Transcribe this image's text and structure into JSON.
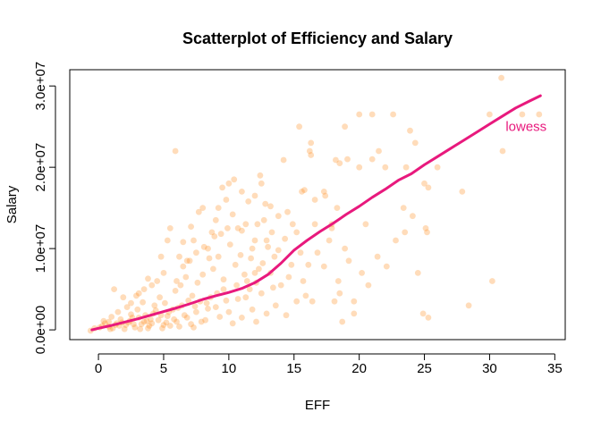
{
  "chart_data": {
    "type": "scatter",
    "title": "Scatterplot of Efficiency and Salary",
    "xlabel": "EFF",
    "ylabel": "Salary",
    "xlim": [
      -2.2,
      35.8
    ],
    "ylim": [
      -1200000,
      32000000
    ],
    "x_ticks": [
      0,
      5,
      10,
      15,
      20,
      25,
      30,
      35
    ],
    "x_tick_labels": [
      "0",
      "5",
      "10",
      "15",
      "20",
      "25",
      "30",
      "35"
    ],
    "y_ticks": [
      0,
      10000000,
      20000000,
      30000000
    ],
    "y_tick_labels": [
      "0.0e+00",
      "1.0e+07",
      "2.0e+07",
      "3.0e+07"
    ],
    "grid": false,
    "point_color": "#FF8C1A",
    "point_opacity": 0.3,
    "lowess_color": "#E8197D",
    "annotation": {
      "text": "lowess",
      "x": 32.8,
      "y": 25000000,
      "color": "#E8197D"
    },
    "series": [
      {
        "points": [
          [
            30.9,
            31000000
          ],
          [
            30.0,
            26500000
          ],
          [
            31.0,
            22000000
          ],
          [
            32.5,
            26500000
          ],
          [
            33.8,
            26500000
          ],
          [
            30.2,
            6000000
          ],
          [
            27.9,
            17000000
          ],
          [
            28.4,
            3000000
          ],
          [
            25.0,
            18000000
          ],
          [
            25.3,
            17500000
          ],
          [
            25.2,
            12000000
          ],
          [
            25.3,
            1500000
          ],
          [
            24.9,
            2000000
          ],
          [
            23.9,
            24500000
          ],
          [
            24.3,
            23000000
          ],
          [
            24.5,
            7000000
          ],
          [
            23.5,
            12000000
          ],
          [
            23.6,
            20000000
          ],
          [
            22.6,
            26500000
          ],
          [
            22.0,
            20000000
          ],
          [
            21.5,
            22000000
          ],
          [
            21.0,
            26500000
          ],
          [
            21.0,
            21000000
          ],
          [
            20.0,
            26500000
          ],
          [
            20.0,
            20000000
          ],
          [
            20.2,
            7000000
          ],
          [
            20.5,
            13000000
          ],
          [
            19.6,
            3500000
          ],
          [
            19.1,
            21000000
          ],
          [
            19.6,
            2000000
          ],
          [
            18.9,
            25000000
          ],
          [
            18.5,
            20500000
          ],
          [
            18.2,
            20900000
          ],
          [
            18.4,
            6000000
          ],
          [
            18.5,
            4500000
          ],
          [
            18.7,
            1000000
          ],
          [
            18.9,
            10000000
          ],
          [
            18.3,
            15000000
          ],
          [
            17.9,
            13000000
          ],
          [
            17.4,
            16500000
          ],
          [
            17.9,
            12500000
          ],
          [
            17.3,
            17000000
          ],
          [
            16.6,
            16000000
          ],
          [
            16.3,
            23000000
          ],
          [
            16.2,
            22000000
          ],
          [
            16.3,
            21500000
          ],
          [
            16.6,
            13000000
          ],
          [
            16.4,
            3500000
          ],
          [
            16.1,
            8000000
          ],
          [
            15.4,
            25000000
          ],
          [
            15.8,
            17200000
          ],
          [
            15.6,
            17000000
          ],
          [
            15.7,
            6000000
          ],
          [
            15.5,
            9500000
          ],
          [
            15.2,
            12000000
          ],
          [
            14.9,
            13000000
          ],
          [
            14.5,
            14500000
          ],
          [
            14.2,
            20900000
          ],
          [
            13.8,
            14000000
          ],
          [
            13.5,
            9000000
          ],
          [
            13.3,
            12000000
          ],
          [
            12.9,
            11000000
          ],
          [
            12.8,
            15500000
          ],
          [
            12.5,
            18000000
          ],
          [
            12.4,
            19000000
          ],
          [
            12.2,
            13000000
          ],
          [
            12.0,
            11000000
          ],
          [
            11.8,
            10000000
          ],
          [
            12.0,
            7000000
          ],
          [
            11.6,
            5000000
          ],
          [
            11.3,
            13000000
          ],
          [
            11.0,
            17000000
          ],
          [
            10.7,
            12500000
          ],
          [
            10.4,
            18500000
          ],
          [
            10.0,
            18000000
          ],
          [
            9.8,
            16000000
          ],
          [
            9.5,
            17500000
          ],
          [
            9.2,
            15000000
          ],
          [
            9.0,
            13500000
          ],
          [
            8.7,
            12000000
          ],
          [
            8.4,
            10000000
          ],
          [
            8.0,
            15000000
          ],
          [
            7.7,
            14500000
          ],
          [
            7.3,
            11000000
          ],
          [
            7.1,
            12700000
          ],
          [
            6.8,
            8500000
          ],
          [
            6.5,
            10800000
          ],
          [
            6.2,
            9000000
          ],
          [
            5.9,
            22000000
          ],
          [
            5.5,
            12500000
          ],
          [
            5.3,
            11000000
          ],
          [
            5.0,
            7000000
          ],
          [
            4.8,
            9000000
          ],
          [
            4.5,
            6000000
          ],
          [
            4.1,
            5500000
          ],
          [
            3.8,
            6300000
          ],
          [
            3.5,
            5000000
          ],
          [
            3.1,
            4500000
          ],
          [
            2.9,
            4200000
          ],
          [
            2.5,
            3300000
          ],
          [
            2.2,
            2800000
          ],
          [
            1.9,
            4000000
          ],
          [
            1.5,
            2200000
          ],
          [
            1.2,
            5000000
          ],
          [
            1.0,
            1600000
          ],
          [
            0.8,
            1000000
          ],
          [
            0.5,
            800000
          ],
          [
            0.1,
            300000
          ],
          [
            -0.3,
            200000
          ],
          [
            -0.6,
            -100000
          ],
          [
            0.3,
            500000
          ],
          [
            0.8,
            400000
          ],
          [
            1.3,
            600000
          ],
          [
            1.8,
            900000
          ],
          [
            2.4,
            1100000
          ],
          [
            2.7,
            700000
          ],
          [
            3.1,
            1500000
          ],
          [
            3.5,
            1000000
          ],
          [
            3.9,
            500000
          ],
          [
            4.2,
            2000000
          ],
          [
            4.6,
            1200000
          ],
          [
            5.0,
            600000
          ],
          [
            5.3,
            1700000
          ],
          [
            5.7,
            2500000
          ],
          [
            6.0,
            1000000
          ],
          [
            6.4,
            3000000
          ],
          [
            6.8,
            1500000
          ],
          [
            7.1,
            700000
          ],
          [
            7.5,
            2200000
          ],
          [
            7.8,
            3500000
          ],
          [
            8.2,
            1200000
          ],
          [
            8.6,
            4000000
          ],
          [
            9.0,
            2800000
          ],
          [
            9.3,
            1600000
          ],
          [
            9.6,
            5000000
          ],
          [
            10.0,
            2200000
          ],
          [
            10.3,
            800000
          ],
          [
            10.7,
            3800000
          ],
          [
            11.0,
            1500000
          ],
          [
            11.4,
            6000000
          ],
          [
            11.8,
            2500000
          ],
          [
            12.1,
            1000000
          ],
          [
            12.5,
            4500000
          ],
          [
            12.9,
            2000000
          ],
          [
            13.2,
            7000000
          ],
          [
            13.6,
            3000000
          ],
          [
            14.0,
            5500000
          ],
          [
            14.4,
            1800000
          ],
          [
            14.8,
            8000000
          ],
          [
            15.2,
            3500000
          ],
          [
            2.0,
            100000
          ],
          [
            2.5,
            1900000
          ],
          [
            3.0,
            2500000
          ],
          [
            3.4,
            3400000
          ],
          [
            3.8,
            200000
          ],
          [
            4.3,
            3000000
          ],
          [
            4.7,
            4000000
          ],
          [
            5.1,
            3300000
          ],
          [
            5.5,
            500000
          ],
          [
            5.9,
            4800000
          ],
          [
            6.3,
            5500000
          ],
          [
            6.7,
            6500000
          ],
          [
            7.2,
            4200000
          ],
          [
            7.6,
            5800000
          ],
          [
            8.0,
            6800000
          ],
          [
            8.4,
            2600000
          ],
          [
            8.8,
            7500000
          ],
          [
            9.2,
            9000000
          ],
          [
            9.6,
            6200000
          ],
          [
            10.1,
            10500000
          ],
          [
            10.5,
            8000000
          ],
          [
            10.9,
            9200000
          ],
          [
            11.3,
            4000000
          ],
          [
            11.7,
            8800000
          ],
          [
            12.1,
            5800000
          ],
          [
            12.6,
            8200000
          ],
          [
            13.0,
            10200000
          ],
          [
            13.4,
            5200000
          ],
          [
            13.8,
            9800000
          ],
          [
            14.3,
            11200000
          ],
          [
            6.0,
            6000000
          ],
          [
            6.5,
            7800000
          ],
          [
            7.0,
            8500000
          ],
          [
            7.5,
            9500000
          ],
          [
            8.1,
            10200000
          ],
          [
            8.5,
            8800000
          ],
          [
            8.9,
            11500000
          ],
          [
            9.4,
            11800000
          ],
          [
            9.9,
            12500000
          ],
          [
            10.3,
            14200000
          ],
          [
            11.0,
            12200000
          ],
          [
            11.5,
            15800000
          ],
          [
            12.0,
            16500000
          ],
          [
            12.7,
            13500000
          ],
          [
            13.2,
            15200000
          ],
          [
            1.6,
            500000
          ],
          [
            2.3,
            900000
          ],
          [
            3.3,
            700000
          ],
          [
            4.0,
            1300000
          ],
          [
            4.8,
            1800000
          ],
          [
            5.4,
            2200000
          ],
          [
            6.1,
            2700000
          ],
          [
            6.9,
            3600000
          ],
          [
            7.4,
            2900000
          ],
          [
            8.3,
            3300000
          ],
          [
            9.1,
            4500000
          ],
          [
            9.8,
            3600000
          ],
          [
            10.6,
            5500000
          ],
          [
            11.2,
            6800000
          ],
          [
            12.3,
            7500000
          ],
          [
            14.6,
            6500000
          ],
          [
            15.9,
            4200000
          ],
          [
            16.8,
            9500000
          ],
          [
            17.3,
            7800000
          ],
          [
            17.7,
            11000000
          ],
          [
            18.1,
            3500000
          ],
          [
            19.2,
            8500000
          ],
          [
            20.7,
            5500000
          ],
          [
            21.4,
            9000000
          ],
          [
            22.1,
            7800000
          ],
          [
            22.8,
            11000000
          ],
          [
            23.4,
            15000000
          ],
          [
            24.1,
            14000000
          ],
          [
            25.1,
            12500000
          ],
          [
            26.0,
            20000000
          ],
          [
            3.6,
            1800000
          ],
          [
            4.4,
            2400000
          ],
          [
            5.2,
            900000
          ],
          [
            6.6,
            1800000
          ],
          [
            7.9,
            1000000
          ],
          [
            2.8,
            300000
          ],
          [
            3.2,
            100000
          ],
          [
            4.9,
            200000
          ],
          [
            6.2,
            400000
          ],
          [
            7.3,
            300000
          ],
          [
            1.1,
            200000
          ],
          [
            1.7,
            1300000
          ],
          [
            2.6,
            1500000
          ],
          [
            4.1,
            800000
          ],
          [
            5.8,
            1300000
          ],
          [
            0.4,
            1100000
          ],
          [
            0.9,
            100000
          ],
          [
            1.4,
            800000
          ],
          [
            2.1,
            600000
          ],
          [
            3.7,
            1100000
          ]
        ]
      }
    ],
    "lowess": [
      [
        -0.5,
        0
      ],
      [
        0,
        200000
      ],
      [
        1,
        550000
      ],
      [
        2,
        950000
      ],
      [
        3,
        1350000
      ],
      [
        4,
        1800000
      ],
      [
        5,
        2250000
      ],
      [
        6,
        2700000
      ],
      [
        7,
        3200000
      ],
      [
        8,
        3750000
      ],
      [
        9,
        4200000
      ],
      [
        10,
        4600000
      ],
      [
        11,
        5100000
      ],
      [
        12,
        5800000
      ],
      [
        13,
        6800000
      ],
      [
        14,
        8200000
      ],
      [
        15,
        9800000
      ],
      [
        16,
        11000000
      ],
      [
        17,
        12100000
      ],
      [
        18,
        13100000
      ],
      [
        19,
        14200000
      ],
      [
        20,
        15200000
      ],
      [
        21,
        16300000
      ],
      [
        22,
        17300000
      ],
      [
        23,
        18400000
      ],
      [
        24,
        19200000
      ],
      [
        25,
        20300000
      ],
      [
        26,
        21300000
      ],
      [
        27,
        22300000
      ],
      [
        28,
        23300000
      ],
      [
        29,
        24300000
      ],
      [
        30,
        25300000
      ],
      [
        31,
        26300000
      ],
      [
        32,
        27300000
      ],
      [
        33,
        28100000
      ],
      [
        33.9,
        28800000
      ]
    ]
  }
}
